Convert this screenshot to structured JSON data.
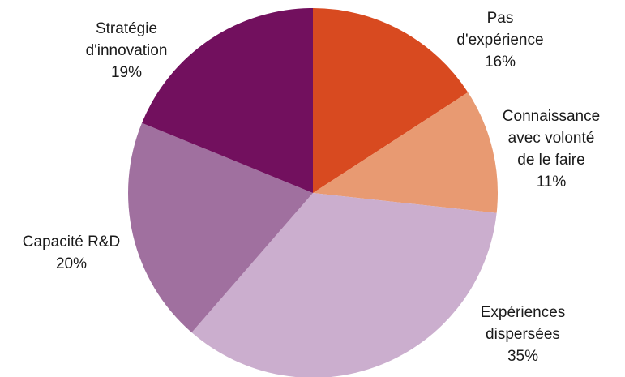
{
  "chart_data": {
    "type": "pie",
    "title": "",
    "start_angle_deg": 0,
    "direction": "clockwise",
    "slices": [
      {
        "label_lines": [
          "Pas",
          "d'expérience"
        ],
        "value": 16,
        "percent_label": "16%",
        "color": "#D84A20"
      },
      {
        "label_lines": [
          "Connaissance",
          "avec volonté",
          "de le faire"
        ],
        "value": 11,
        "percent_label": "11%",
        "color": "#E89A72"
      },
      {
        "label_lines": [
          "Expériences",
          "dispersées"
        ],
        "value": 35,
        "percent_label": "35%",
        "color": "#CBAECE"
      },
      {
        "label_lines": [
          "Capacité R&D"
        ],
        "value": 20,
        "percent_label": "20%",
        "color": "#A0709F"
      },
      {
        "label_lines": [
          "Stratégie",
          "d'innovation"
        ],
        "value": 19,
        "percent_label": "19%",
        "color": "#72105E"
      }
    ]
  }
}
